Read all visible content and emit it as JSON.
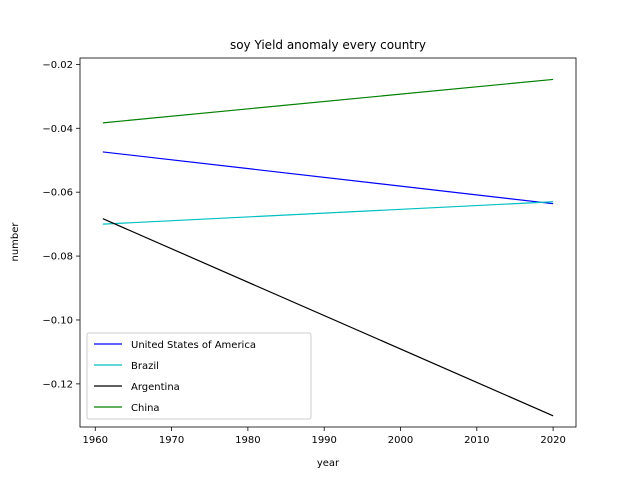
{
  "chart_data": {
    "type": "line",
    "title": "soy Yield anomaly every country",
    "xlabel": "year",
    "ylabel": "number",
    "xlim": [
      1958,
      2023
    ],
    "ylim": [
      -0.1335,
      -0.018
    ],
    "xticks": [
      1960,
      1970,
      1980,
      1990,
      2000,
      2010,
      2020
    ],
    "yticks": [
      -0.12,
      -0.1,
      -0.08,
      -0.06,
      -0.04,
      -0.02
    ],
    "ytick_labels": [
      "−0.12",
      "−0.10",
      "−0.08",
      "−0.06",
      "−0.04",
      "−0.02"
    ],
    "grid": false,
    "legend_position": "lower left",
    "series": [
      {
        "name": "United States of America",
        "color": "#0000ff",
        "x": [
          1961,
          2020
        ],
        "y": [
          -0.0474,
          -0.0636
        ]
      },
      {
        "name": "Brazil",
        "color": "#00bfbf",
        "x": [
          1961,
          2020
        ],
        "y": [
          -0.07,
          -0.063
        ]
      },
      {
        "name": "Argentina",
        "color": "#000000",
        "x": [
          1961,
          2020
        ],
        "y": [
          -0.0683,
          -0.13
        ]
      },
      {
        "name": "China",
        "color": "#008000",
        "x": [
          1961,
          2020
        ],
        "y": [
          -0.0383,
          -0.0247
        ]
      }
    ]
  }
}
